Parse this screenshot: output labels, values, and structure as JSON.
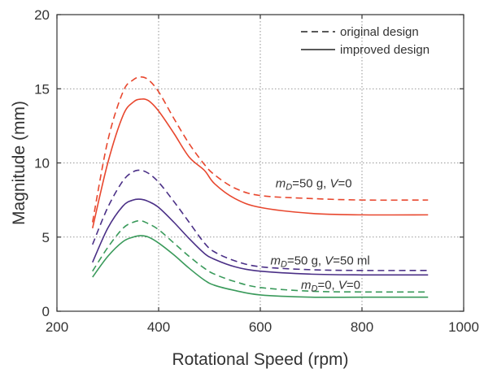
{
  "chart_data": {
    "type": "line",
    "xlabel": "Rotational Speed (rpm)",
    "ylabel": "Magnitude (mm)",
    "xlim": [
      200,
      1000
    ],
    "ylim": [
      0,
      20
    ],
    "xticks": [
      200,
      400,
      600,
      800,
      1000
    ],
    "yticks": [
      0,
      5,
      10,
      15,
      20
    ],
    "grid": true,
    "legend_position": "top-right",
    "legend": [
      {
        "label": "original design",
        "style": "dashed"
      },
      {
        "label": "improved design",
        "style": "solid"
      }
    ],
    "x": [
      270,
      300,
      330,
      350,
      365,
      380,
      400,
      430,
      460,
      490,
      510,
      550,
      600,
      700,
      800,
      930
    ],
    "series": [
      {
        "group": "mD=50 g, V=0",
        "design": "original",
        "color": "#e8472e",
        "dashed": true,
        "values": [
          6.0,
          11.5,
          14.8,
          15.6,
          15.8,
          15.6,
          14.8,
          13.0,
          11.3,
          9.9,
          9.2,
          8.3,
          7.8,
          7.6,
          7.5,
          7.5
        ]
      },
      {
        "group": "mD=50 g, V=0",
        "design": "improved",
        "color": "#e8472e",
        "dashed": false,
        "values": [
          5.6,
          10.0,
          13.2,
          14.1,
          14.3,
          14.2,
          13.5,
          12.0,
          10.4,
          9.5,
          8.6,
          7.6,
          7.0,
          6.6,
          6.5,
          6.5
        ]
      },
      {
        "group": "mD=50 g, V=50 ml",
        "design": "original",
        "color": "#4a2f86",
        "dashed": true,
        "values": [
          4.5,
          7.0,
          8.8,
          9.4,
          9.5,
          9.3,
          8.7,
          7.4,
          6.0,
          4.6,
          4.0,
          3.4,
          3.0,
          2.8,
          2.75,
          2.75
        ]
      },
      {
        "group": "mD=50 g, V=50 ml",
        "design": "improved",
        "color": "#4a2f86",
        "dashed": false,
        "values": [
          3.3,
          5.6,
          7.1,
          7.5,
          7.55,
          7.4,
          7.0,
          6.0,
          4.9,
          3.9,
          3.5,
          3.0,
          2.7,
          2.5,
          2.45,
          2.45
        ]
      },
      {
        "group": "mD=0, V=0",
        "design": "original",
        "color": "#3a9a5b",
        "dashed": true,
        "values": [
          2.7,
          4.3,
          5.6,
          6.0,
          6.1,
          5.9,
          5.5,
          4.6,
          3.7,
          2.9,
          2.5,
          2.0,
          1.6,
          1.35,
          1.3,
          1.3
        ]
      },
      {
        "group": "mD=0, V=0",
        "design": "improved",
        "color": "#3a9a5b",
        "dashed": false,
        "values": [
          2.3,
          3.7,
          4.7,
          5.0,
          5.1,
          5.0,
          4.6,
          3.8,
          2.9,
          2.1,
          1.75,
          1.4,
          1.1,
          0.95,
          0.95,
          0.95
        ]
      }
    ],
    "annotations": [
      {
        "id": "red",
        "m": "m",
        "sub": "D",
        "eq1": "=50 g,  ",
        "v": "V",
        "eq2": "=0",
        "x": 630,
        "y": 8.35
      },
      {
        "id": "purple",
        "m": "m",
        "sub": "D",
        "eq1": "=50 g,  ",
        "v": "V",
        "eq2": "=50 ml",
        "x": 620,
        "y": 3.15
      },
      {
        "id": "green",
        "m": "m",
        "sub": "D",
        "eq1": "=0,  ",
        "v": "V",
        "eq2": "=0",
        "x": 680,
        "y": 1.5
      }
    ]
  }
}
